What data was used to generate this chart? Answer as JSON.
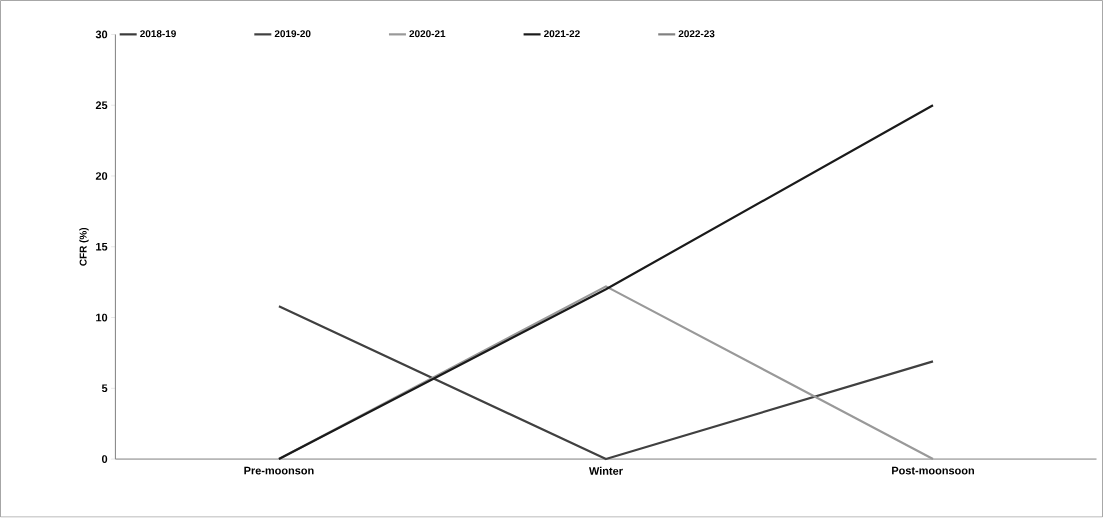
{
  "chart_data": {
    "type": "line",
    "ylabel": "CFR (%)",
    "categories": [
      "Pre-moonson",
      "Winter",
      "Post-moonsoon"
    ],
    "series": [
      {
        "name": "2018-19",
        "color": "#3a3a3a",
        "values": [
          null,
          null,
          null
        ]
      },
      {
        "name": "2019-20",
        "color": "#404040",
        "values": [
          10.8,
          0,
          6.9
        ]
      },
      {
        "name": "2020-21",
        "color": "#999999",
        "values": [
          0,
          12.2,
          0
        ]
      },
      {
        "name": "2021-22",
        "color": "#1a1a1a",
        "values": [
          0,
          12,
          25
        ]
      },
      {
        "name": "2022-23",
        "color": "#808080",
        "values": [
          null,
          null,
          null
        ]
      }
    ],
    "ylim": [
      0,
      30
    ],
    "yticks": [
      0,
      5,
      10,
      15,
      20,
      25,
      30
    ],
    "legend": "top",
    "marker": "none",
    "line_style": "solid",
    "grid": false
  }
}
